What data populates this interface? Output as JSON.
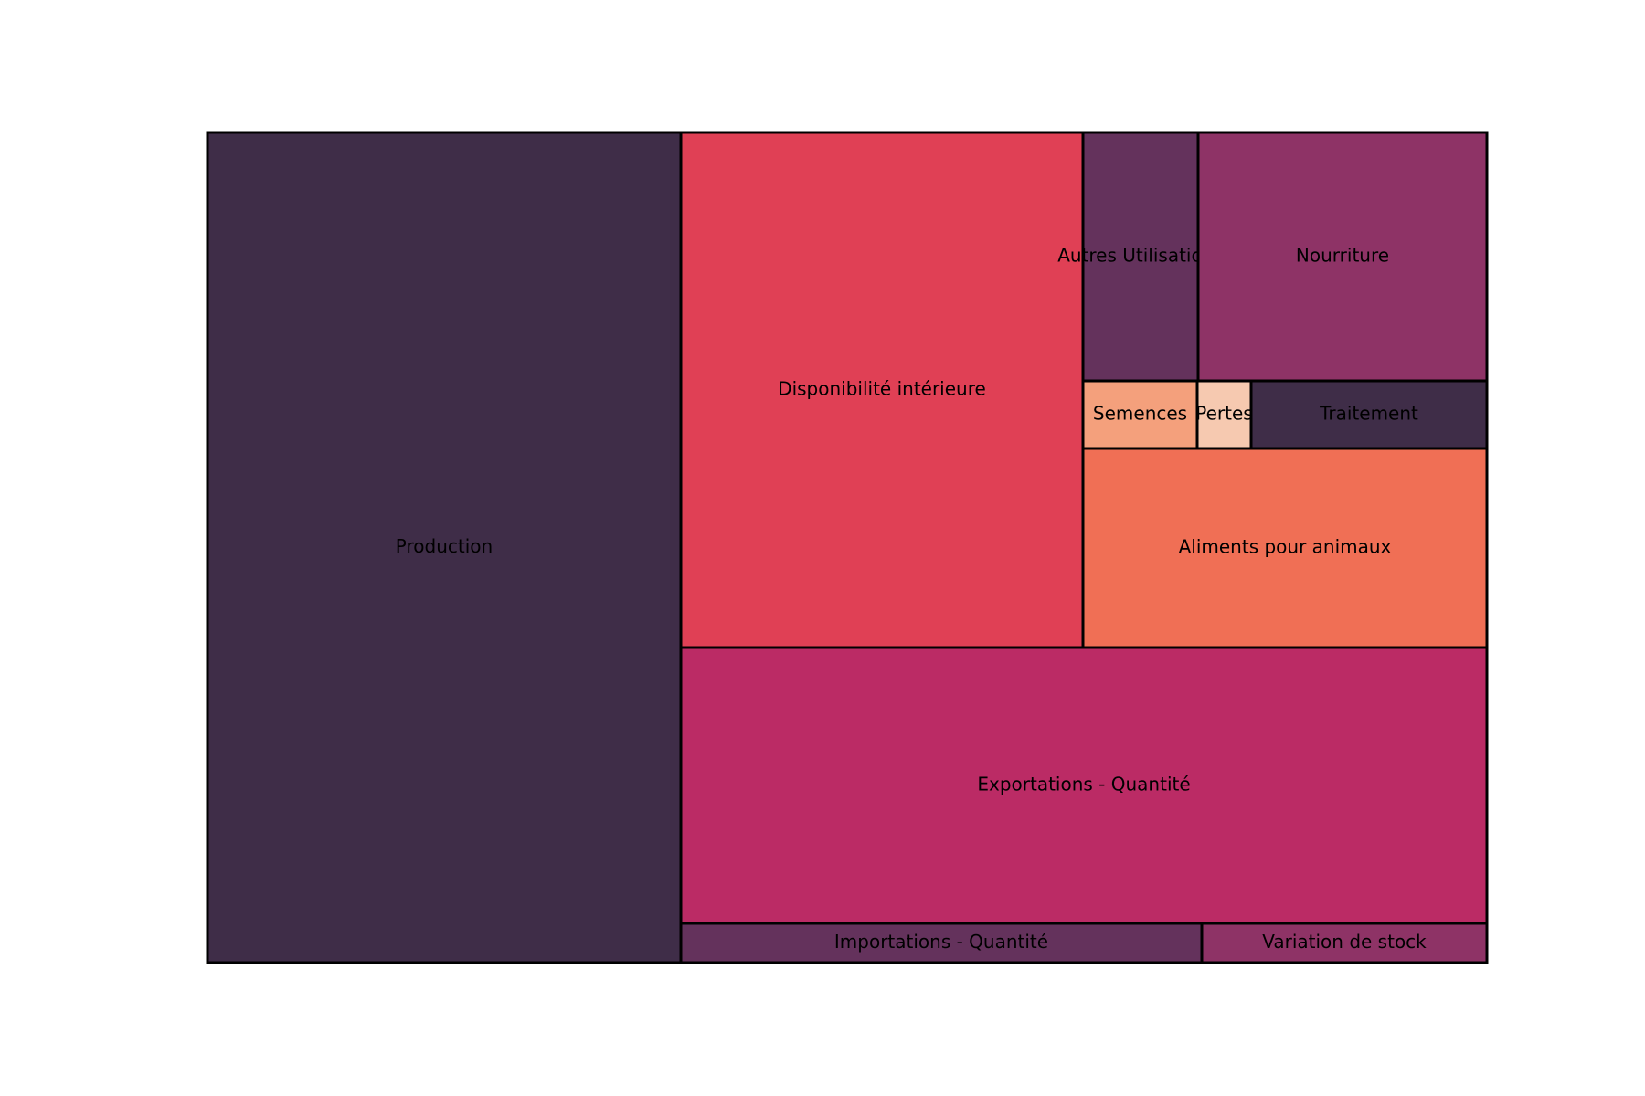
{
  "chart_data": {
    "type": "treemap",
    "title": "",
    "xlabel": "",
    "ylabel": "",
    "grid": false,
    "legend": "none",
    "tiles": [
      {
        "label": "Production",
        "value": 17,
        "color": "#3f2d48"
      },
      {
        "label": "Disponibilité intérieure",
        "value": 9,
        "color": "#e04055"
      },
      {
        "label": "Autres Utilisations",
        "value": 1.25,
        "color": "#64325c"
      },
      {
        "label": "Nourriture",
        "value": 3.1,
        "color": "#8e3366"
      },
      {
        "label": "Semences",
        "value": 0.65,
        "color": "#f4a07c"
      },
      {
        "label": "Pertes",
        "value": 0.32,
        "color": "#f6c9b0"
      },
      {
        "label": "Traitement",
        "value": 1.4,
        "color": "#3f2d48"
      },
      {
        "label": "Aliments pour animaux",
        "value": 3.3,
        "color": "#f06f55"
      },
      {
        "label": "Exportations - Quantité",
        "value": 9.6,
        "color": "#bb2b65"
      },
      {
        "label": "Importations - Quantité",
        "value": 0.9,
        "color": "#64325c"
      },
      {
        "label": "Variation de stock",
        "value": 0.5,
        "color": "#8e3366"
      }
    ]
  }
}
